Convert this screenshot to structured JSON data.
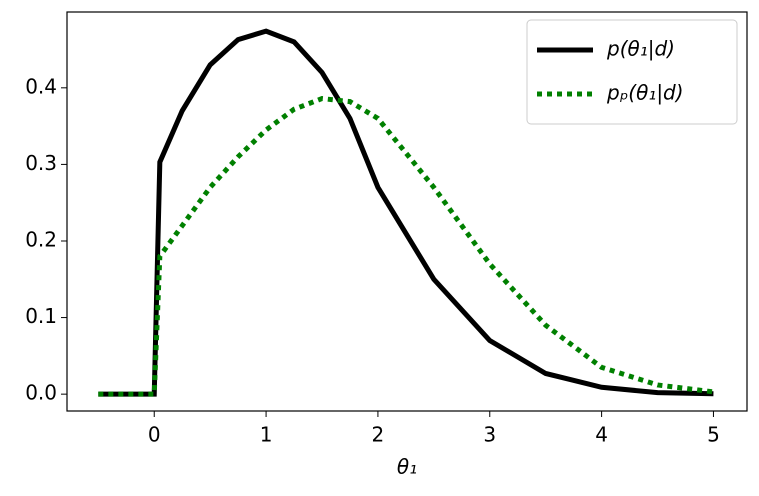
{
  "chart_data": {
    "type": "line",
    "x_label": "θ₁",
    "x": [
      -0.5,
      0,
      0.05,
      0.25,
      0.5,
      0.75,
      1,
      1.25,
      1.5,
      1.75,
      2,
      2.5,
      3,
      3.5,
      4,
      4.5,
      5
    ],
    "series": [
      {
        "name": "p(θ₁|d)",
        "color": "#000000",
        "linestyle": "solid",
        "values": [
          0,
          0,
          0.303,
          0.37,
          0.43,
          0.463,
          0.474,
          0.46,
          0.42,
          0.36,
          0.27,
          0.15,
          0.07,
          0.027,
          0.009,
          0.002,
          0.0005
        ]
      },
      {
        "name": "pₚ(θ₁|d)",
        "color": "#008000",
        "linestyle": "dotted",
        "values": [
          0,
          0,
          0.18,
          0.22,
          0.27,
          0.31,
          0.345,
          0.372,
          0.386,
          0.382,
          0.36,
          0.27,
          0.17,
          0.09,
          0.035,
          0.012,
          0.003
        ]
      }
    ],
    "xlim": [
      -0.78,
      5.3
    ],
    "ylim": [
      -0.022,
      0.499
    ],
    "xticks": [
      0,
      1,
      2,
      3,
      4,
      5
    ],
    "yticks": [
      {
        "value": 0,
        "label": "0.0"
      },
      {
        "value": 0.1,
        "label": "0.1"
      },
      {
        "value": 0.2,
        "label": "0.2"
      },
      {
        "value": 0.3,
        "label": "0.3"
      },
      {
        "value": 0.4,
        "label": "0.4"
      }
    ],
    "legend": "upper right"
  }
}
